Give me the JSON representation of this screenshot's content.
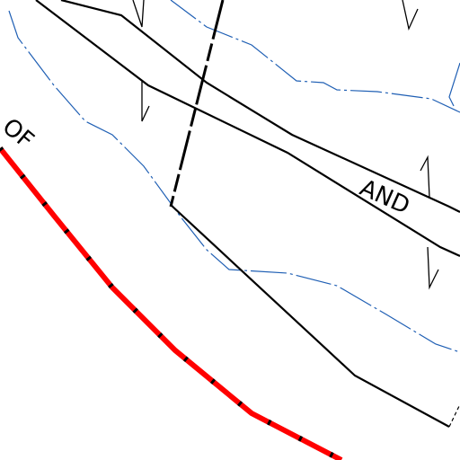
{
  "map": {
    "labels": [
      {
        "text": "OF"
      },
      {
        "text": "AND"
      }
    ]
  }
}
